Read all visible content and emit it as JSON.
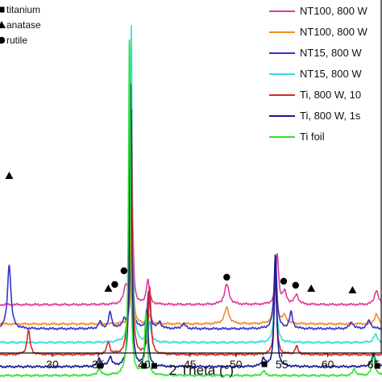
{
  "chart_data": {
    "type": "line",
    "xlabel": "2 Theta (°)",
    "ylabel": "",
    "xlim": [
      25,
      66
    ],
    "x_ticks": [
      "30",
      "35",
      "40",
      "45",
      "50",
      "55",
      "60",
      "65"
    ],
    "grid": false,
    "legend_position": "top-right",
    "phase_key": [
      {
        "marker": "square",
        "label": "titanium"
      },
      {
        "marker": "triangle",
        "label": "anatase"
      },
      {
        "marker": "circle",
        "label": "rutile"
      }
    ],
    "series": [
      {
        "name": "NT100, 800 W",
        "color": "#e0399b",
        "baseline": 378,
        "peaks": [
          {
            "x": 38.0,
            "h": 22,
            "w": 0.25
          },
          {
            "x": 38.7,
            "h": 125,
            "w": 0.14
          },
          {
            "x": 40.4,
            "h": 30,
            "w": 0.2
          },
          {
            "x": 49.0,
            "h": 25,
            "w": 0.3
          },
          {
            "x": 54.5,
            "h": 62,
            "w": 0.18
          },
          {
            "x": 55.3,
            "h": 15,
            "w": 0.25
          },
          {
            "x": 56.6,
            "h": 12,
            "w": 0.25
          },
          {
            "x": 65.3,
            "h": 18,
            "w": 0.25
          }
        ]
      },
      {
        "name": "NT100, 800 W",
        "color": "#f28c28",
        "baseline": 402,
        "peaks": [
          {
            "x": 38.7,
            "h": 110,
            "w": 0.14
          },
          {
            "x": 40.6,
            "h": 10,
            "w": 0.2
          },
          {
            "x": 49.0,
            "h": 20,
            "w": 0.3
          },
          {
            "x": 54.3,
            "h": 70,
            "w": 0.18
          },
          {
            "x": 55.3,
            "h": 10,
            "w": 0.25
          },
          {
            "x": 65.3,
            "h": 12,
            "w": 0.25
          }
        ]
      },
      {
        "name": "NT15, 800 W",
        "color": "#3333cc",
        "baseline": 408,
        "peaks": [
          {
            "x": 25.3,
            "h": 80,
            "w": 0.22
          },
          {
            "x": 35.2,
            "h": 8,
            "w": 0.2
          },
          {
            "x": 36.3,
            "h": 20,
            "w": 0.2
          },
          {
            "x": 37.8,
            "h": 10,
            "w": 0.2
          },
          {
            "x": 38.6,
            "h": 150,
            "w": 0.13
          },
          {
            "x": 40.5,
            "h": 45,
            "w": 0.18
          },
          {
            "x": 41.7,
            "h": 8,
            "w": 0.2
          },
          {
            "x": 44.3,
            "h": 6,
            "w": 0.25
          },
          {
            "x": 54.3,
            "h": 90,
            "w": 0.18
          },
          {
            "x": 56.0,
            "h": 20,
            "w": 0.2
          },
          {
            "x": 62.6,
            "h": 8,
            "w": 0.25
          },
          {
            "x": 64.5,
            "h": 10,
            "w": 0.25
          }
        ]
      },
      {
        "name": "NT15, 800 W",
        "color": "#33dde0",
        "baseline": 425,
        "peaks": [
          {
            "x": 38.6,
            "h": 395,
            "w": 0.12
          },
          {
            "x": 40.6,
            "h": 25,
            "w": 0.18
          },
          {
            "x": 54.3,
            "h": 75,
            "w": 0.18
          },
          {
            "x": 65.2,
            "h": 10,
            "w": 0.25
          }
        ]
      },
      {
        "name": "Ti, 800 W, 10",
        "color": "#d62828",
        "baseline": 440,
        "peaks": [
          {
            "x": 27.4,
            "h": 30,
            "w": 0.2
          },
          {
            "x": 36.1,
            "h": 15,
            "w": 0.2
          },
          {
            "x": 38.2,
            "h": 30,
            "w": 0.2
          },
          {
            "x": 38.6,
            "h": 300,
            "w": 0.12
          },
          {
            "x": 40.6,
            "h": 85,
            "w": 0.16
          },
          {
            "x": 54.3,
            "h": 95,
            "w": 0.16
          },
          {
            "x": 56.6,
            "h": 10,
            "w": 0.2
          }
        ]
      },
      {
        "name": "Ti, 800 W, 1s",
        "color": "#1a1a8c",
        "baseline": 455,
        "peaks": [
          {
            "x": 35.1,
            "h": 10,
            "w": 0.2
          },
          {
            "x": 36.3,
            "h": 12,
            "w": 0.2
          },
          {
            "x": 38.5,
            "h": 360,
            "w": 0.12
          },
          {
            "x": 40.3,
            "h": 70,
            "w": 0.16
          },
          {
            "x": 53.0,
            "h": 10,
            "w": 0.2
          },
          {
            "x": 54.3,
            "h": 140,
            "w": 0.15
          },
          {
            "x": 65.0,
            "h": 15,
            "w": 0.25
          }
        ]
      },
      {
        "name": "Ti foil",
        "color": "#33e033",
        "baseline": 466,
        "peaks": [
          {
            "x": 35.1,
            "h": 8,
            "w": 0.2
          },
          {
            "x": 38.4,
            "h": 420,
            "w": 0.12
          },
          {
            "x": 40.2,
            "h": 78,
            "w": 0.16
          },
          {
            "x": 53.0,
            "h": 6,
            "w": 0.2
          },
          {
            "x": 62.9,
            "h": 8,
            "w": 0.2
          },
          {
            "x": 65.0,
            "h": 25,
            "w": 0.2
          }
        ]
      }
    ],
    "markers": [
      {
        "type": "triangle",
        "x": 25.3,
        "y": 218
      },
      {
        "type": "triangle",
        "x": 36.1,
        "y": 358
      },
      {
        "type": "circle",
        "x": 36.8,
        "y": 353
      },
      {
        "type": "circle",
        "x": 37.8,
        "y": 336
      },
      {
        "type": "circle",
        "x": 49.0,
        "y": 344
      },
      {
        "type": "circle",
        "x": 55.2,
        "y": 349
      },
      {
        "type": "circle",
        "x": 56.5,
        "y": 354
      },
      {
        "type": "triangle",
        "x": 58.2,
        "y": 358
      },
      {
        "type": "triangle",
        "x": 62.7,
        "y": 360
      },
      {
        "type": "square",
        "x": 35.2,
        "y": 454
      },
      {
        "type": "square",
        "x": 40.0,
        "y": 454
      },
      {
        "type": "square",
        "x": 41.1,
        "y": 454
      },
      {
        "type": "square",
        "x": 53.1,
        "y": 452
      },
      {
        "type": "square",
        "x": 65.4,
        "y": 454
      }
    ]
  }
}
